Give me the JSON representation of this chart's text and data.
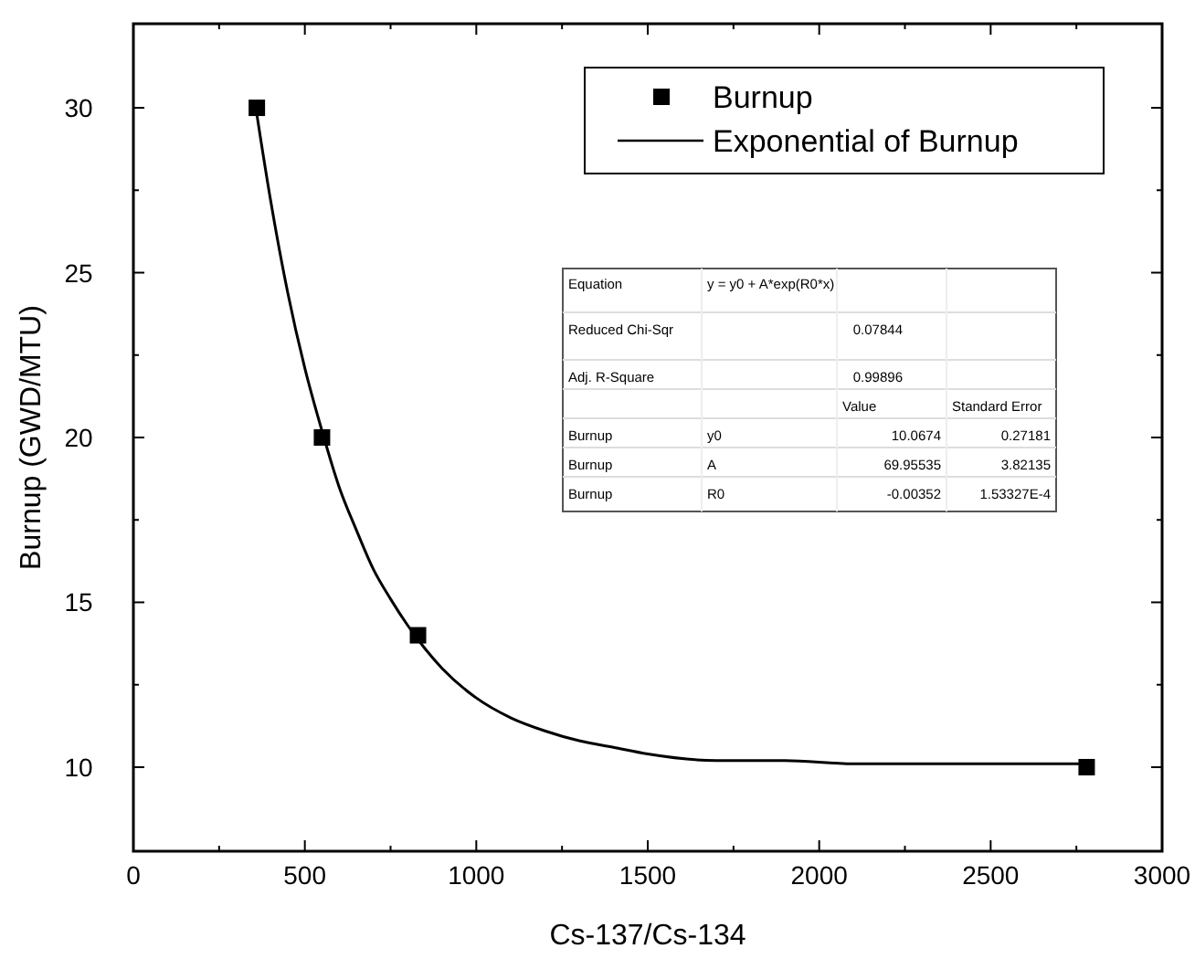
{
  "chart_data": {
    "type": "scatter",
    "xlabel": "Cs-137/Cs-134",
    "ylabel": "Burnup (GWD/MTU)",
    "xlim": [
      0,
      3000
    ],
    "xticks": [
      0,
      500,
      1000,
      1500,
      2000,
      2500,
      3000
    ],
    "ylim": [
      7.45,
      32.55
    ],
    "yticks": [
      10,
      15,
      20,
      25,
      30
    ],
    "grid": false,
    "legend": "top right",
    "series": [
      {
        "name": "Burnup",
        "marker": "square",
        "color": "#000000",
        "x": [
          360,
          550,
          830,
          2780
        ],
        "values": [
          30,
          20,
          14,
          10
        ]
      },
      {
        "name": "Exponential of Burnup",
        "type": "line",
        "marker": "none",
        "line_style": "solid",
        "color": "#000000",
        "x": [
          360,
          400,
          450,
          500,
          550,
          600,
          650,
          700,
          750,
          800,
          850,
          900,
          1000,
          1100,
          1200,
          1300,
          1400,
          1500,
          1700,
          1900,
          2100,
          2400,
          2780
        ],
        "values": [
          29.8,
          27.2,
          24.4,
          22.1,
          20.2,
          18.5,
          17.2,
          16.0,
          15.1,
          14.3,
          13.6,
          13.0,
          12.1,
          11.5,
          11.1,
          10.8,
          10.6,
          10.4,
          10.2,
          10.2,
          10.1,
          10.1,
          10.1
        ]
      }
    ],
    "annotations": [
      "Equation",
      "y = y0 + A*exp(R0*x)",
      "Reduced Chi-Sqr",
      "0.07844",
      "Adj. R-Square",
      "0.99896",
      "Value",
      "Standard Error",
      "Burnup",
      "y0",
      "10.0674",
      "0.27181",
      "Burnup",
      "A",
      "69.95535",
      "3.82135",
      "Burnup",
      "R0",
      "-0.00352",
      "1.53327E-4"
    ]
  }
}
